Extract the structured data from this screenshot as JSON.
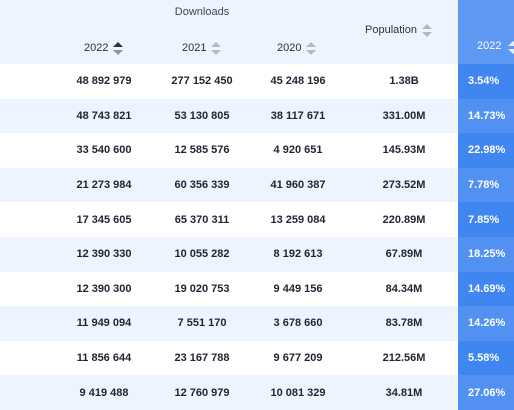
{
  "header": {
    "group_label": "Downloads",
    "columns": [
      {
        "label": "2022",
        "sort": "active"
      },
      {
        "label": "2021",
        "sort": "none"
      },
      {
        "label": "2020",
        "sort": "none"
      },
      {
        "label": "Population",
        "sort": "none"
      },
      {
        "label": "2022",
        "sort": "none"
      }
    ]
  },
  "colors": {
    "header_bg": "#eef4ff",
    "alt_row_bg": "#eef4ff",
    "highlight_column": "#3f86f0",
    "text": "#1f2433"
  },
  "rows": [
    {
      "d2022": "48 892 979",
      "d2021": "277 152 450",
      "d2020": "45 248 196",
      "population": "1.38B",
      "pct2022": "3.54%"
    },
    {
      "d2022": "48 743 821",
      "d2021": "53 130 805",
      "d2020": "38 117 671",
      "population": "331.00M",
      "pct2022": "14.73%"
    },
    {
      "d2022": "33 540 600",
      "d2021": "12 585 576",
      "d2020": "4 920 651",
      "population": "145.93M",
      "pct2022": "22.98%"
    },
    {
      "d2022": "21 273 984",
      "d2021": "60 356 339",
      "d2020": "41 960 387",
      "population": "273.52M",
      "pct2022": "7.78%"
    },
    {
      "d2022": "17 345 605",
      "d2021": "65 370 311",
      "d2020": "13 259 084",
      "population": "220.89M",
      "pct2022": "7.85%"
    },
    {
      "d2022": "12 390 330",
      "d2021": "10 055 282",
      "d2020": "8 192 613",
      "population": "67.89M",
      "pct2022": "18.25%"
    },
    {
      "d2022": "12 390 300",
      "d2021": "19 020 753",
      "d2020": "9 449 156",
      "population": "84.34M",
      "pct2022": "14.69%"
    },
    {
      "d2022": "11 949 094",
      "d2021": "7 551 170",
      "d2020": "3 678 660",
      "population": "83.78M",
      "pct2022": "14.26%"
    },
    {
      "d2022": "11 856 644",
      "d2021": "23 167 788",
      "d2020": "9 677 209",
      "population": "212.56M",
      "pct2022": "5.58%"
    },
    {
      "d2022": "9 419 488",
      "d2021": "12 760 979",
      "d2020": "10 081 329",
      "population": "34.81M",
      "pct2022": "27.06%"
    }
  ]
}
